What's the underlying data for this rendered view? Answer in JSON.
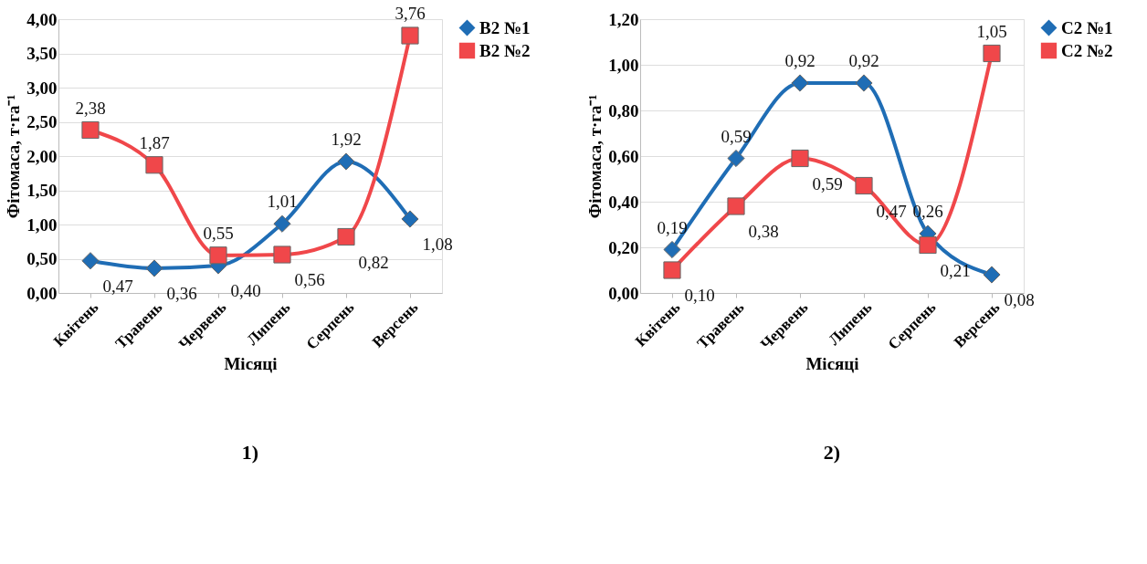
{
  "chart_data": [
    {
      "type": "line",
      "categories": [
        "Квітень",
        "Травень",
        "Червень",
        "Липень",
        "Серпень",
        "Версень"
      ],
      "xlabel": "Місяці",
      "ylabel": "Фітомаса,   т·га⁻¹",
      "ylim": [
        0,
        4
      ],
      "yticks": [
        {
          "value": 0,
          "label": "0,00"
        },
        {
          "value": 0.5,
          "label": "0,50"
        },
        {
          "value": 1,
          "label": "1,00"
        },
        {
          "value": 1.5,
          "label": "1,50"
        },
        {
          "value": 2,
          "label": "2,00"
        },
        {
          "value": 2.5,
          "label": "2,50"
        },
        {
          "value": 3,
          "label": "3,00"
        },
        {
          "value": 3.5,
          "label": "3,50"
        },
        {
          "value": 4,
          "label": "4,00"
        }
      ],
      "grid": "y",
      "legend": "right",
      "line_style": "solid",
      "series": [
        {
          "name": "B2 №1",
          "color": "#1f6db5",
          "marker": "diamond",
          "values": [
            0.47,
            0.36,
            0.4,
            1.01,
            1.92,
            1.08
          ],
          "value_labels": [
            "0,47",
            "0,36",
            "0,40",
            "1,01",
            "1,92",
            "1,08"
          ]
        },
        {
          "name": "B2 №2",
          "color": "#f0474a",
          "marker": "square",
          "values": [
            2.38,
            1.87,
            0.55,
            0.56,
            0.82,
            3.76
          ],
          "value_labels": [
            "2,38",
            "1,87",
            "0,55",
            "0,56",
            "0,82",
            "3,76"
          ]
        }
      ],
      "annotations": [
        "1)"
      ]
    },
    {
      "type": "line",
      "categories": [
        "Квітень",
        "Травень",
        "Червень",
        "Липень",
        "Серпень",
        "Версень"
      ],
      "xlabel": "Місяці",
      "ylabel": "Фітомаса,   т·га⁻¹",
      "ylim": [
        0,
        1.2
      ],
      "yticks": [
        {
          "value": 0,
          "label": "0,00"
        },
        {
          "value": 0.2,
          "label": "0,20"
        },
        {
          "value": 0.4,
          "label": "0,40"
        },
        {
          "value": 0.6,
          "label": "0,60"
        },
        {
          "value": 0.8,
          "label": "0,80"
        },
        {
          "value": 1,
          "label": "1,00"
        },
        {
          "value": 1.2,
          "label": "1,20"
        }
      ],
      "grid": "y",
      "legend": "right",
      "line_style": "solid",
      "series": [
        {
          "name": "C2 №1",
          "color": "#1f6db5",
          "marker": "diamond",
          "values": [
            0.19,
            0.59,
            0.92,
            0.92,
            0.26,
            0.08
          ],
          "value_labels": [
            "0,19",
            "0,59",
            "0,92",
            "0,92",
            "0,26",
            "0,08"
          ]
        },
        {
          "name": "C2 №2",
          "color": "#f0474a",
          "marker": "square",
          "values": [
            0.1,
            0.38,
            0.59,
            0.47,
            0.21,
            1.05
          ],
          "value_labels": [
            "0,10",
            "0,38",
            "0,59",
            "0,47",
            "0,21",
            "1,05"
          ]
        }
      ],
      "annotations": [
        "2)"
      ]
    }
  ]
}
